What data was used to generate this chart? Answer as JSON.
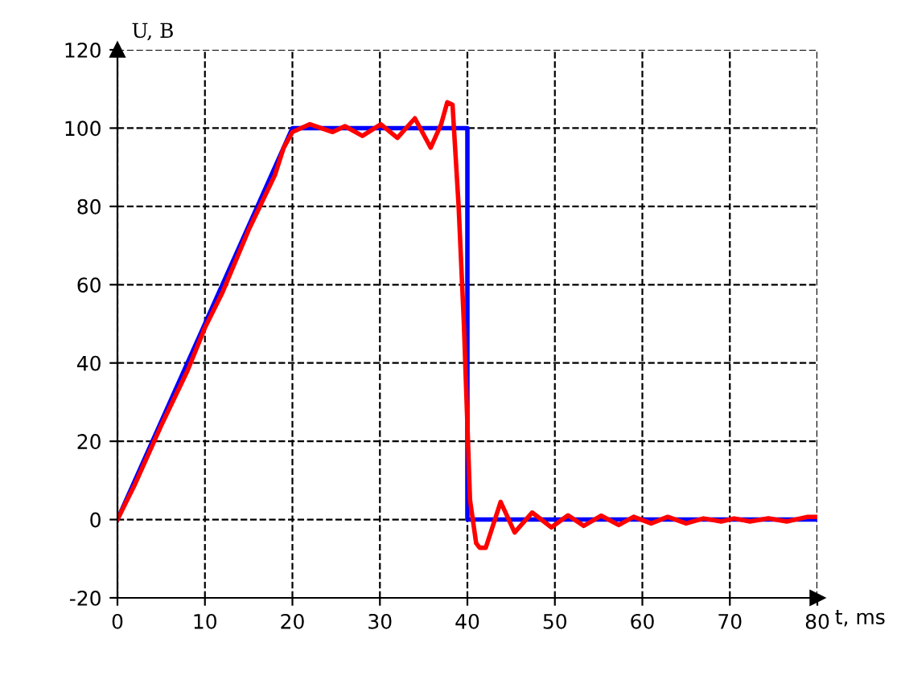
{
  "chart_data": {
    "type": "line",
    "xlabel": "t, ms",
    "ylabel": "U, B",
    "xlim": [
      0,
      80
    ],
    "ylim": [
      -20,
      120
    ],
    "xticks": [
      0,
      10,
      20,
      30,
      40,
      50,
      60,
      70,
      80
    ],
    "yticks": [
      -20,
      0,
      20,
      40,
      60,
      80,
      100,
      120
    ],
    "grid": true,
    "line_style": "solid",
    "series": [
      {
        "color": "#0000ff",
        "x": [
          0,
          20,
          40,
          40,
          80
        ],
        "values": [
          0,
          100,
          100,
          0,
          0
        ]
      },
      {
        "color": "#ff0000",
        "x": [
          0,
          2,
          5,
          8,
          10,
          12,
          15,
          18,
          19,
          20,
          22,
          24.6,
          26,
          28,
          30.1,
          32,
          34,
          35.8,
          37,
          37.7,
          38.3,
          39,
          39.6,
          40.3,
          41,
          41.4,
          42.1,
          43.8,
          45.4,
          47.4,
          49.6,
          51.5,
          53.3,
          55.3,
          57.3,
          59,
          61,
          62.9,
          65,
          67,
          69,
          70.5,
          72.3,
          74.4,
          76.5,
          78.9,
          80
        ],
        "values": [
          0,
          9,
          24,
          38,
          49,
          58,
          74,
          88,
          95,
          99,
          101,
          99,
          100.5,
          98,
          101,
          97.5,
          102.5,
          95,
          101,
          106.6,
          106,
          80,
          50,
          5,
          -6,
          -7.2,
          -7.2,
          4.5,
          -3.3,
          1.8,
          -2,
          1.1,
          -1.6,
          1,
          -1.4,
          0.7,
          -1,
          0.7,
          -1,
          0.3,
          -0.5,
          0.3,
          -0.5,
          0.3,
          -0.5,
          0.7,
          0.7
        ]
      }
    ]
  }
}
